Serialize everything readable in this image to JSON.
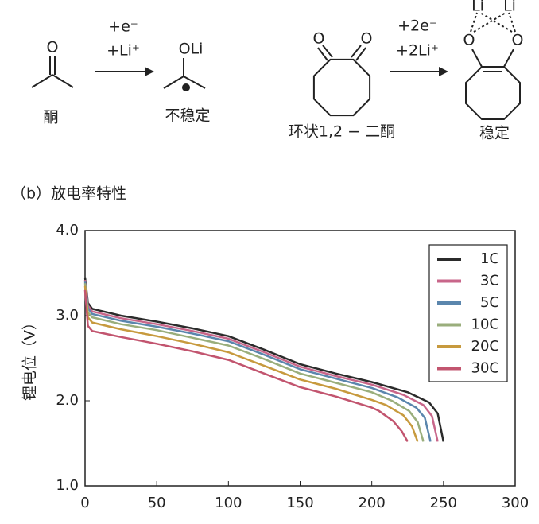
{
  "diagram": {
    "ketone": {
      "atom": "O",
      "name": "酮"
    },
    "step1": {
      "reagents": [
        "+e⁻",
        "+Li⁺"
      ]
    },
    "radical": {
      "atom": "OLi",
      "name": "不稳定"
    },
    "diketone": {
      "atoms": [
        "O",
        "O"
      ],
      "name": "环状1,2 − 二酮"
    },
    "step2": {
      "reagents": [
        "+2e⁻",
        "+2Li⁺"
      ]
    },
    "product": {
      "atoms": [
        "Li",
        "Li",
        "O",
        "O"
      ],
      "name": "稳定"
    },
    "section_label": "（b）放电率特性"
  },
  "chart_data": {
    "type": "line",
    "y_label": "锂电位（V）",
    "xlim": [
      0,
      300
    ],
    "xticks": [
      0,
      50,
      100,
      150,
      200,
      250,
      300
    ],
    "ylim": [
      1,
      4
    ],
    "yticks": [
      {
        "value": 1,
        "label": "1.0"
      },
      {
        "value": 2,
        "label": "2.0"
      },
      {
        "value": 3,
        "label": "3.0"
      },
      {
        "value": 4,
        "label": "4.0"
      }
    ],
    "legend": "upper right",
    "series": [
      {
        "name": "1C",
        "color": "#2b2b2b",
        "x": [
          0,
          2,
          5,
          25,
          50,
          75,
          100,
          125,
          150,
          175,
          200,
          225,
          240,
          246,
          250
        ],
        "values": [
          3.45,
          3.15,
          3.08,
          3.0,
          2.93,
          2.85,
          2.76,
          2.6,
          2.43,
          2.32,
          2.22,
          2.1,
          1.98,
          1.85,
          1.52
        ]
      },
      {
        "name": "3C",
        "color": "#c8668a",
        "x": [
          0,
          2,
          5,
          25,
          50,
          75,
          100,
          125,
          150,
          175,
          200,
          222,
          236,
          242,
          246
        ],
        "values": [
          3.42,
          3.12,
          3.05,
          2.97,
          2.9,
          2.82,
          2.73,
          2.57,
          2.4,
          2.29,
          2.19,
          2.07,
          1.95,
          1.82,
          1.52
        ]
      },
      {
        "name": "5C",
        "color": "#5b86ad",
        "x": [
          0,
          2,
          5,
          25,
          50,
          75,
          100,
          125,
          150,
          175,
          200,
          218,
          231,
          237,
          241
        ],
        "values": [
          3.4,
          3.09,
          3.02,
          2.94,
          2.87,
          2.79,
          2.7,
          2.54,
          2.37,
          2.26,
          2.15,
          2.04,
          1.92,
          1.8,
          1.52
        ]
      },
      {
        "name": "10C",
        "color": "#9aae7c",
        "x": [
          0,
          2,
          5,
          25,
          50,
          75,
          100,
          125,
          150,
          175,
          200,
          214,
          226,
          232,
          236
        ],
        "values": [
          3.38,
          3.04,
          2.98,
          2.9,
          2.83,
          2.74,
          2.65,
          2.49,
          2.32,
          2.21,
          2.1,
          2.0,
          1.88,
          1.75,
          1.52
        ]
      },
      {
        "name": "20C",
        "color": "#c79a3e",
        "x": [
          0,
          2,
          5,
          25,
          50,
          75,
          100,
          125,
          150,
          175,
          200,
          210,
          222,
          228,
          232
        ],
        "values": [
          3.35,
          2.98,
          2.92,
          2.84,
          2.76,
          2.67,
          2.57,
          2.41,
          2.25,
          2.14,
          2.01,
          1.95,
          1.83,
          1.7,
          1.52
        ]
      },
      {
        "name": "30C",
        "color": "#c2556f",
        "x": [
          0,
          2,
          5,
          25,
          50,
          75,
          100,
          125,
          150,
          175,
          200,
          205,
          215,
          221,
          225
        ],
        "values": [
          3.3,
          2.88,
          2.82,
          2.75,
          2.67,
          2.58,
          2.48,
          2.32,
          2.16,
          2.05,
          1.92,
          1.88,
          1.76,
          1.64,
          1.52
        ]
      }
    ]
  }
}
